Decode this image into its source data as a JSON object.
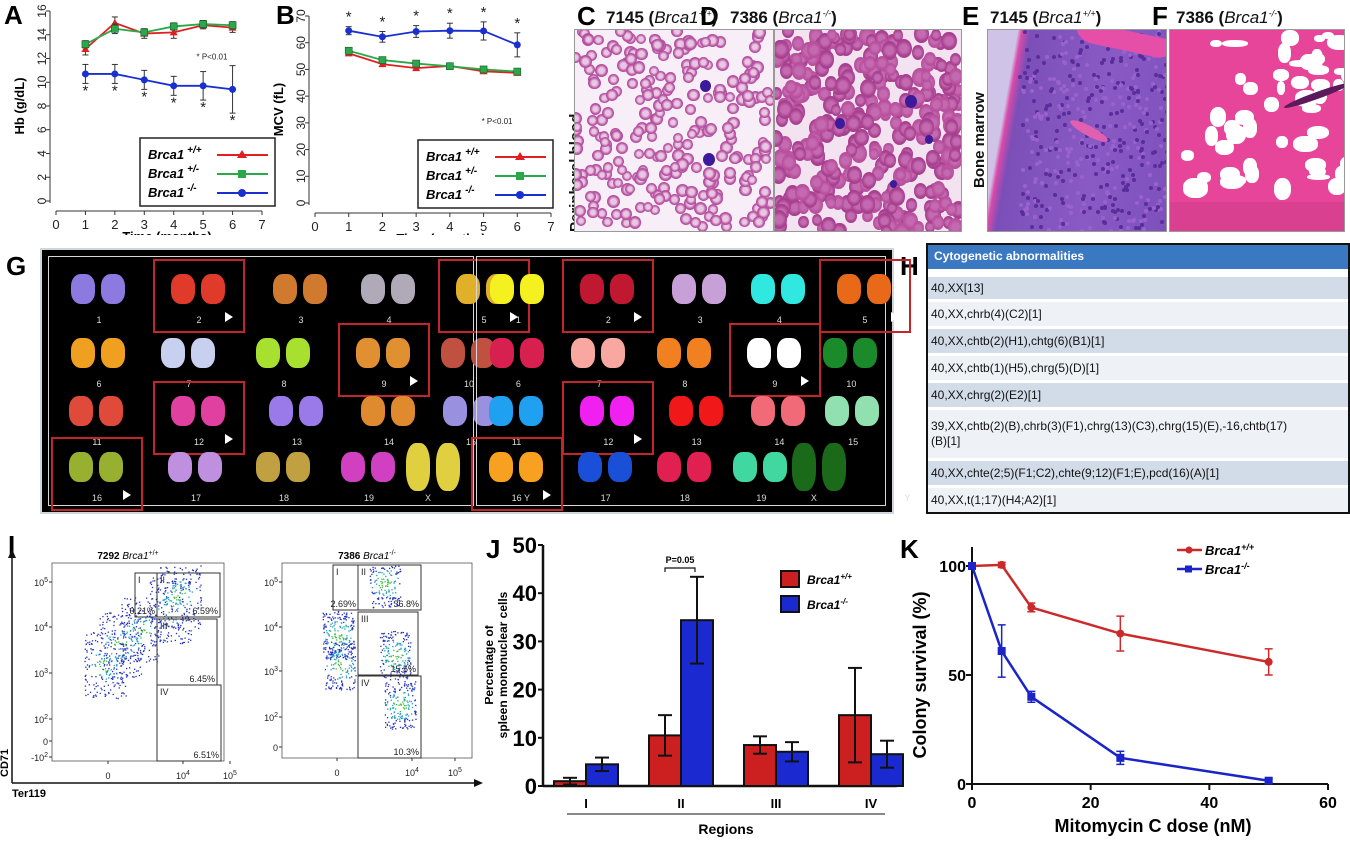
{
  "figure": {
    "panels": {
      "A": "A",
      "B": "B",
      "C": "C",
      "D": "D",
      "E": "E",
      "F": "F",
      "G": "G",
      "H": "H",
      "I": "I",
      "J": "J",
      "K": "K"
    }
  },
  "chart_data": [
    {
      "id": "A",
      "type": "line",
      "title": "",
      "xlabel": "Time (months)",
      "ylabel": "Hb (g/dL)",
      "xlim": [
        0,
        7
      ],
      "ylim": [
        0,
        16
      ],
      "xticks": [
        0,
        1,
        2,
        3,
        4,
        5,
        6,
        7
      ],
      "yticks": [
        0,
        2,
        4,
        6,
        8,
        10,
        12,
        14,
        16
      ],
      "annotation": "* P<0.01",
      "significance_marker": "*",
      "legend_position": "bottom-right",
      "x": [
        1,
        2,
        3,
        4,
        5,
        6
      ],
      "series": [
        {
          "name": "Brca1",
          "genotype": "+/+",
          "color": "#e02020",
          "marker": "triangle",
          "values": [
            12.8,
            15.0,
            14.1,
            14.2,
            14.8,
            14.6
          ],
          "errors": [
            0.5,
            0.5,
            0.4,
            0.5,
            0.3,
            0.4
          ]
        },
        {
          "name": "Brca1",
          "genotype": "+/-",
          "color": "#2aa84a",
          "marker": "square",
          "values": [
            13.2,
            14.5,
            14.2,
            14.7,
            14.9,
            14.8
          ],
          "errors": [
            0.3,
            0.4,
            0.3,
            0.3,
            0.3,
            0.3
          ]
        },
        {
          "name": "Brca1",
          "genotype": "-/-",
          "color": "#1a2fd0",
          "marker": "circle",
          "values": [
            10.7,
            10.7,
            10.2,
            9.7,
            9.7,
            9.4
          ],
          "errors": [
            0.8,
            0.8,
            0.8,
            0.8,
            1.2,
            2.0
          ],
          "significant": [
            true,
            true,
            true,
            true,
            true,
            true
          ]
        }
      ]
    },
    {
      "id": "B",
      "type": "line",
      "title": "",
      "xlabel": "Time (months)",
      "ylabel": "MCV (fL)",
      "xlim": [
        0,
        7
      ],
      "ylim": [
        0,
        70
      ],
      "xticks": [
        0,
        1,
        2,
        3,
        4,
        5,
        6,
        7
      ],
      "yticks": [
        0,
        10,
        20,
        30,
        40,
        50,
        60,
        70
      ],
      "annotation": "* P<0.01",
      "significance_marker": "*",
      "legend_position": "bottom-right",
      "x": [
        1,
        2,
        3,
        4,
        5,
        6
      ],
      "series": [
        {
          "name": "Brca1",
          "genotype": "+/+",
          "color": "#e02020",
          "marker": "triangle",
          "values": [
            56,
            52,
            50.5,
            51.3,
            49.3,
            48.7
          ],
          "errors": [
            0.8,
            0.8,
            0.8,
            0.8,
            0.8,
            0.8
          ]
        },
        {
          "name": "Brca1",
          "genotype": "+/-",
          "color": "#2aa84a",
          "marker": "square",
          "values": [
            57,
            53.5,
            52.2,
            51.2,
            50,
            49.2
          ],
          "errors": [
            0.8,
            0.8,
            0.8,
            0.8,
            0.8,
            0.8
          ]
        },
        {
          "name": "Brca1",
          "genotype": "-/-",
          "color": "#1a2fd0",
          "marker": "circle",
          "values": [
            64.5,
            62.2,
            64.2,
            64.5,
            64.4,
            59.2
          ],
          "errors": [
            1.5,
            2.0,
            2.2,
            2.8,
            3.4,
            4.5
          ],
          "significant": [
            true,
            true,
            true,
            true,
            true,
            true
          ]
        }
      ]
    },
    {
      "id": "J",
      "type": "bar",
      "title": "",
      "xlabel": "Regions",
      "ylabel": "Percentage of\nspleen mononuclear cells",
      "ylim": [
        0,
        50
      ],
      "yticks": [
        0,
        10,
        20,
        30,
        40,
        50
      ],
      "categories": [
        "I",
        "II",
        "III",
        "IV"
      ],
      "annotation": {
        "text": "P=0.05",
        "category": "II"
      },
      "legend_position": "top-right",
      "series": [
        {
          "name": "Brca1",
          "genotype": "+/+",
          "color": "#cc1f1f",
          "values": [
            1.0,
            10.5,
            8.5,
            14.7
          ],
          "errors": [
            0.7,
            4.2,
            1.8,
            9.8
          ]
        },
        {
          "name": "Brca1",
          "genotype": "-/-",
          "color": "#1a2ad0",
          "values": [
            4.5,
            34.4,
            7.1,
            6.6
          ],
          "errors": [
            1.4,
            9.0,
            2.0,
            2.8
          ]
        }
      ]
    },
    {
      "id": "K",
      "type": "line",
      "title": "",
      "xlabel": "Mitomycin C dose (nM)",
      "ylabel": "Colony survival (%)",
      "xlim": [
        0,
        60
      ],
      "ylim": [
        0,
        100
      ],
      "xticks": [
        0,
        20,
        40,
        60
      ],
      "yticks": [
        0,
        50,
        100
      ],
      "legend_position": "top-right",
      "x": [
        0,
        5,
        10,
        25,
        50
      ],
      "series": [
        {
          "name": "Brca1",
          "genotype": "+/+",
          "color": "#cc2a2a",
          "marker": "circle",
          "values": [
            100,
            100.5,
            81,
            69,
            56
          ],
          "errors": [
            0,
            1.2,
            2,
            8,
            6
          ]
        },
        {
          "name": "Brca1",
          "genotype": "-/-",
          "color": "#1a24c8",
          "marker": "square",
          "values": [
            100,
            61,
            40,
            12,
            1.5
          ],
          "errors": [
            0,
            12,
            2.5,
            3,
            1
          ]
        }
      ]
    }
  ],
  "micrographs": {
    "C": {
      "sample": "7145",
      "gene": "Brca1",
      "genotype": "+/+"
    },
    "D": {
      "sample": "7386",
      "gene": "Brca1",
      "genotype": "-/-"
    },
    "E": {
      "sample": "7145",
      "gene": "Brca1",
      "genotype": "+/+"
    },
    "F": {
      "sample": "7386",
      "gene": "Brca1",
      "genotype": "-/-"
    },
    "row_label_blood": "Peripheral blood",
    "row_label_marrow": "Bone marrow"
  },
  "karyotype": {
    "chromosomes": [
      "1",
      "2",
      "3",
      "4",
      "5",
      "6",
      "7",
      "8",
      "9",
      "10",
      "11",
      "12",
      "13",
      "14",
      "15",
      "16",
      "17",
      "18",
      "19",
      "X",
      "Y"
    ],
    "abnormal": [
      "2",
      "5",
      "9",
      "12",
      "16"
    ]
  },
  "cytogenetics": {
    "header": "Cytogenetic abnormalities",
    "rows": [
      "40,XX[13]",
      "40,XX,chrb(4)(C2)[1]",
      "40,XX,chtb(2)(H1),chtg(6)(B1)[1]",
      "40,XX,chtb(1)(H5),chrg(5)(D)[1]",
      "40,XX,chrg(2)(E2)[1]",
      "39,XX,chtb(2)(B),chrb(3)(F1),chrg(13)(C3),chrg(15)(E),-16,chtb(17)(B)[1]",
      "40,XX,chte(2;5)(F1;C2),chte(9;12)(F1;E),pcd(16)(A)[1]",
      "40,XX,t(1;17)(H4;A2)[1]"
    ]
  },
  "flow": {
    "y_axis": "CD71",
    "x_axis": "Ter119",
    "y_ticks": [
      "10^5",
      "10^4",
      "10^3",
      "10^2",
      "0",
      "-10^2"
    ],
    "x_ticks": [
      "0",
      "10^4",
      "10^5"
    ],
    "plots": [
      {
        "sample": "7292",
        "gene": "Brca1",
        "genotype": "+/+",
        "gates": [
          {
            "name": "I",
            "pct": "0.21%"
          },
          {
            "name": "II",
            "pct": "6.59%"
          },
          {
            "name": "III",
            "pct": "6.45%"
          },
          {
            "name": "IV",
            "pct": "6.51%"
          }
        ]
      },
      {
        "sample": "7386",
        "gene": "Brca1",
        "genotype": "-/-",
        "gates": [
          {
            "name": "I",
            "pct": "2.69%"
          },
          {
            "name": "II",
            "pct": "36.8%"
          },
          {
            "name": "III",
            "pct": "15.5%"
          },
          {
            "name": "IV",
            "pct": "10.3%"
          }
        ]
      }
    ]
  }
}
